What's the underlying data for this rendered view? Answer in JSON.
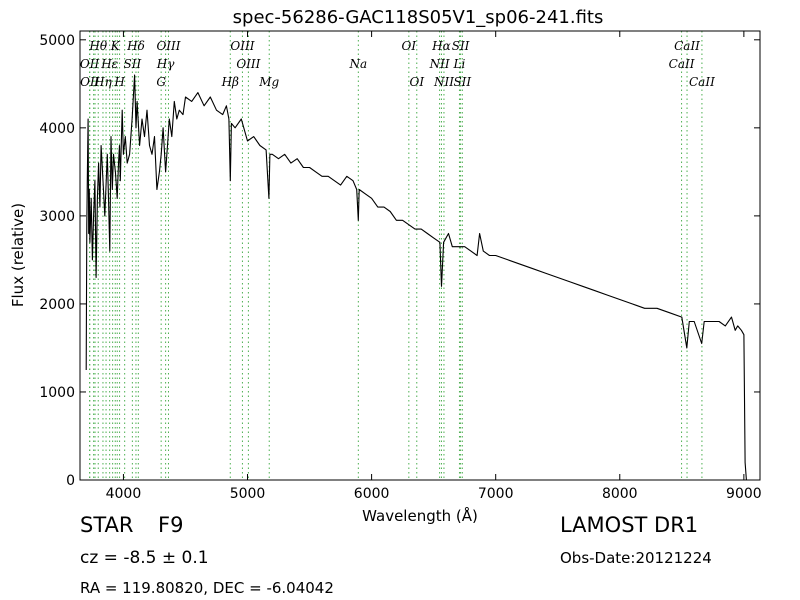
{
  "chart_data": {
    "type": "line",
    "title": "spec-56286-GAC118S05V1_sp06-241.fits",
    "xlabel": "Wavelength (Å)",
    "ylabel": "Flux (relative)",
    "xlim": [
      3650,
      9130
    ],
    "ylim": [
      0,
      5100
    ],
    "xticks": [
      4000,
      5000,
      6000,
      7000,
      8000,
      9000
    ],
    "yticks": [
      0,
      1000,
      2000,
      3000,
      4000,
      5000
    ],
    "grid": false,
    "line_color": "#000000",
    "marker_color": "#4caf50",
    "series": [
      {
        "x": [
          3700,
          3705,
          3710,
          3715,
          3720,
          3725,
          3730,
          3740,
          3750,
          3760,
          3770,
          3780,
          3790,
          3800,
          3810,
          3820,
          3835,
          3850,
          3870,
          3880,
          3890,
          3900,
          3910,
          3920,
          3935,
          3950,
          3960,
          3968,
          3975,
          3990,
          4000,
          4015,
          4030,
          4050,
          4070,
          4090,
          4101,
          4110,
          4130,
          4150,
          4170,
          4190,
          4210,
          4230,
          4250,
          4270,
          4290,
          4304,
          4320,
          4340,
          4355,
          4370,
          4390,
          4410,
          4430,
          4450,
          4480,
          4500,
          4550,
          4600,
          4650,
          4700,
          4750,
          4800,
          4830,
          4850,
          4861,
          4870,
          4900,
          4950,
          5000,
          5050,
          5100,
          5150,
          5172,
          5180,
          5200,
          5250,
          5300,
          5350,
          5400,
          5450,
          5500,
          5550,
          5600,
          5650,
          5700,
          5750,
          5800,
          5850,
          5880,
          5893,
          5900,
          5950,
          6000,
          6050,
          6100,
          6150,
          6200,
          6250,
          6300,
          6350,
          6400,
          6450,
          6500,
          6550,
          6563,
          6580,
          6620,
          6650,
          6700,
          6750,
          6800,
          6850,
          6870,
          6900,
          6950,
          7000,
          7100,
          7200,
          7300,
          7400,
          7500,
          7600,
          7700,
          7800,
          7900,
          8000,
          8100,
          8200,
          8300,
          8400,
          8500,
          8540,
          8560,
          8600,
          8660,
          8680,
          8700,
          8800,
          8850,
          8900,
          8930,
          8950,
          8980,
          9000,
          9010,
          9020
        ],
        "y": [
          1250,
          2900,
          3500,
          4100,
          2800,
          3300,
          2700,
          3200,
          2500,
          3000,
          3400,
          2300,
          3200,
          3600,
          3100,
          3800,
          3400,
          3000,
          3700,
          3200,
          2600,
          3900,
          3300,
          3700,
          3500,
          3200,
          3600,
          3800,
          3400,
          4200,
          3700,
          3900,
          3600,
          3700,
          4100,
          4600,
          4000,
          4300,
          3800,
          4100,
          3900,
          4200,
          3800,
          3700,
          3900,
          3300,
          3500,
          3700,
          4000,
          3500,
          3800,
          4100,
          3900,
          4300,
          4100,
          4200,
          4150,
          4350,
          4300,
          4400,
          4250,
          4350,
          4200,
          4150,
          4250,
          4100,
          3400,
          4050,
          4000,
          4100,
          3850,
          3900,
          3800,
          3750,
          3200,
          3700,
          3700,
          3650,
          3700,
          3600,
          3650,
          3550,
          3550,
          3500,
          3450,
          3450,
          3400,
          3350,
          3450,
          3400,
          3300,
          2950,
          3300,
          3250,
          3200,
          3100,
          3100,
          3050,
          2950,
          2950,
          2900,
          2850,
          2850,
          2800,
          2750,
          2700,
          2200,
          2700,
          2800,
          2650,
          2650,
          2650,
          2600,
          2550,
          2800,
          2600,
          2550,
          2550,
          2500,
          2450,
          2400,
          2350,
          2300,
          2250,
          2200,
          2150,
          2100,
          2050,
          2000,
          1950,
          1950,
          1900,
          1850,
          1500,
          1800,
          1800,
          1550,
          1800,
          1800,
          1800,
          1750,
          1850,
          1700,
          1750,
          1700,
          1650,
          200,
          0
        ]
      }
    ],
    "lines": [
      {
        "label": "Hθ",
        "x": 3797,
        "row": 0
      },
      {
        "label": "K",
        "x": 3934,
        "row": 0
      },
      {
        "label": "Hδ",
        "x": 4101,
        "row": 0
      },
      {
        "label": "OIII",
        "x": 4363,
        "row": 0
      },
      {
        "label": "OIII",
        "x": 4959,
        "row": 0
      },
      {
        "label": "OI",
        "x": 6300,
        "row": 0
      },
      {
        "label": "Hα",
        "x": 6563,
        "row": 0
      },
      {
        "label": "SII",
        "x": 6717,
        "row": 0
      },
      {
        "label": "CaII",
        "x": 8542,
        "row": 0
      },
      {
        "label": "OII",
        "x": 3727,
        "row": 1
      },
      {
        "label": "Hε",
        "x": 3889,
        "row": 1
      },
      {
        "label": "SII",
        "x": 4072,
        "row": 1
      },
      {
        "label": "Hγ",
        "x": 4340,
        "row": 1
      },
      {
        "label": "OIII",
        "x": 5007,
        "row": 1
      },
      {
        "label": "Na",
        "x": 5893,
        "row": 1
      },
      {
        "label": "NII",
        "x": 6548,
        "row": 1
      },
      {
        "label": "Li",
        "x": 6708,
        "row": 1
      },
      {
        "label": "CaII",
        "x": 8498,
        "row": 1
      },
      {
        "label": "OII",
        "x": 3729,
        "row": 2
      },
      {
        "label": "Hη",
        "x": 3835,
        "row": 2
      },
      {
        "label": "H",
        "x": 3969,
        "row": 2
      },
      {
        "label": "G",
        "x": 4304,
        "row": 2
      },
      {
        "label": "Hβ",
        "x": 4861,
        "row": 2
      },
      {
        "label": "Mg",
        "x": 5175,
        "row": 2
      },
      {
        "label": "OI",
        "x": 6364,
        "row": 2
      },
      {
        "label": "NII",
        "x": 6583,
        "row": 2
      },
      {
        "label": "SII",
        "x": 6731,
        "row": 2
      },
      {
        "label": "CaII",
        "x": 8662,
        "row": 2
      }
    ],
    "extra_markers": [
      3760,
      3771,
      3860,
      3913,
      3950,
      4010,
      4120
    ]
  },
  "info": {
    "object_class": "STAR",
    "subclass": "F9",
    "survey": "LAMOST DR1",
    "redshift": "cz = -8.5  ± 0.1",
    "obs_date": "Obs-Date:20121224",
    "coords": "RA = 119.80820, DEC = -6.04042"
  }
}
